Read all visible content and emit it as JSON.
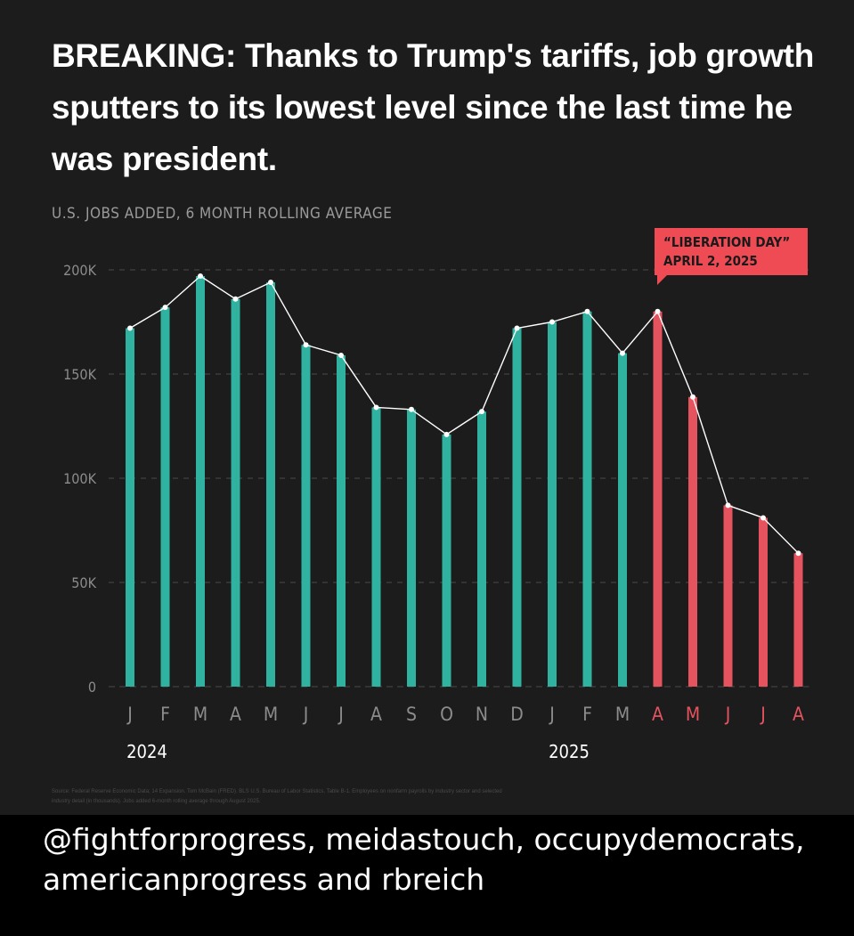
{
  "headline": "BREAKING: Thanks to Trump's tariffs, job growth sputters to its lowest level since the last time he was president.",
  "credit": {
    "handles": "@fightforprogress, meidastouch, occupydemocrats, americanprogress",
    "connector": " and ",
    "last": "rbreich"
  },
  "source_note": "Source: Federal Reserve Economic Data; 14 Expansion. Tom McBain (FRED). BLS U.S. Bureau of Labor Statistics, Table B-1. Employees on nonfarm payrolls by industry sector and selected industry detail (in thousands). Jobs added 6-month rolling average through August 2025.",
  "colors": {
    "teal": "#2fb3a0",
    "red": "#e5535f",
    "annotation_bg": "#ee4b55",
    "annotation_text": "#1a1a1a",
    "grid": "#4a4a4a",
    "line": "#ffffff",
    "tick": "#8c8c8c"
  },
  "chart_data": {
    "type": "bar",
    "title": "U.S. JOBS ADDED, 6 MONTH ROLLING AVERAGE",
    "categories": [
      "J",
      "F",
      "M",
      "A",
      "M",
      "J",
      "J",
      "A",
      "S",
      "O",
      "N",
      "D",
      "J",
      "F",
      "M",
      "A",
      "M",
      "J",
      "J",
      "A"
    ],
    "values": [
      172,
      182,
      197,
      186,
      194,
      164,
      159,
      134,
      133,
      121,
      132,
      172,
      175,
      180,
      160,
      180,
      139,
      87,
      81,
      64
    ],
    "unit": "thousand jobs",
    "highlight_from_index": 15,
    "ylim": [
      0,
      200
    ],
    "yticks": [
      0,
      50,
      100,
      150,
      200
    ],
    "ytick_labels": [
      "0",
      "50K",
      "100K",
      "150K",
      "200K"
    ],
    "year_labels": [
      {
        "index": 0,
        "label": "2024"
      },
      {
        "index": 12,
        "label": "2025"
      }
    ],
    "overlay_line": true,
    "annotation": {
      "index": 15,
      "line1": "“LIBERATION DAY”",
      "line2": "APRIL 2, 2025"
    }
  }
}
